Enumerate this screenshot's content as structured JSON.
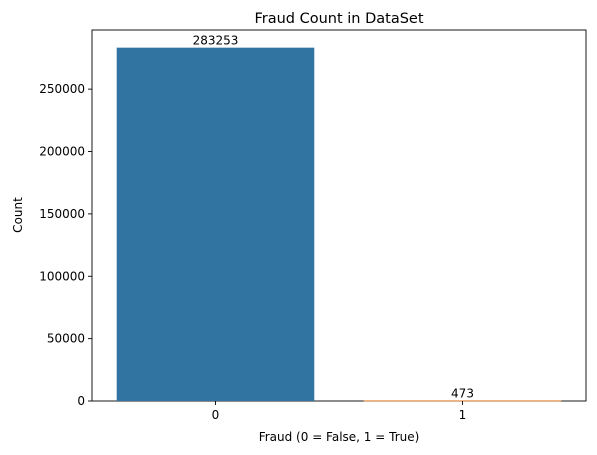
{
  "chart_data": {
    "type": "bar",
    "title": "Fraud Count in DataSet",
    "xlabel": "Fraud (0 = False, 1 = True)",
    "ylabel": "Count",
    "categories": [
      "0",
      "1"
    ],
    "values": [
      283253,
      473
    ],
    "data_labels": [
      "283253",
      "473"
    ],
    "ylim": [
      0,
      297416
    ],
    "yticks": [
      0,
      50000,
      100000,
      150000,
      200000,
      250000
    ],
    "ytick_labels": [
      "0",
      "50000",
      "100000",
      "150000",
      "200000",
      "250000"
    ],
    "colors": [
      "#3274a1",
      "#e1812c"
    ],
    "grid": false,
    "legend": "none"
  }
}
